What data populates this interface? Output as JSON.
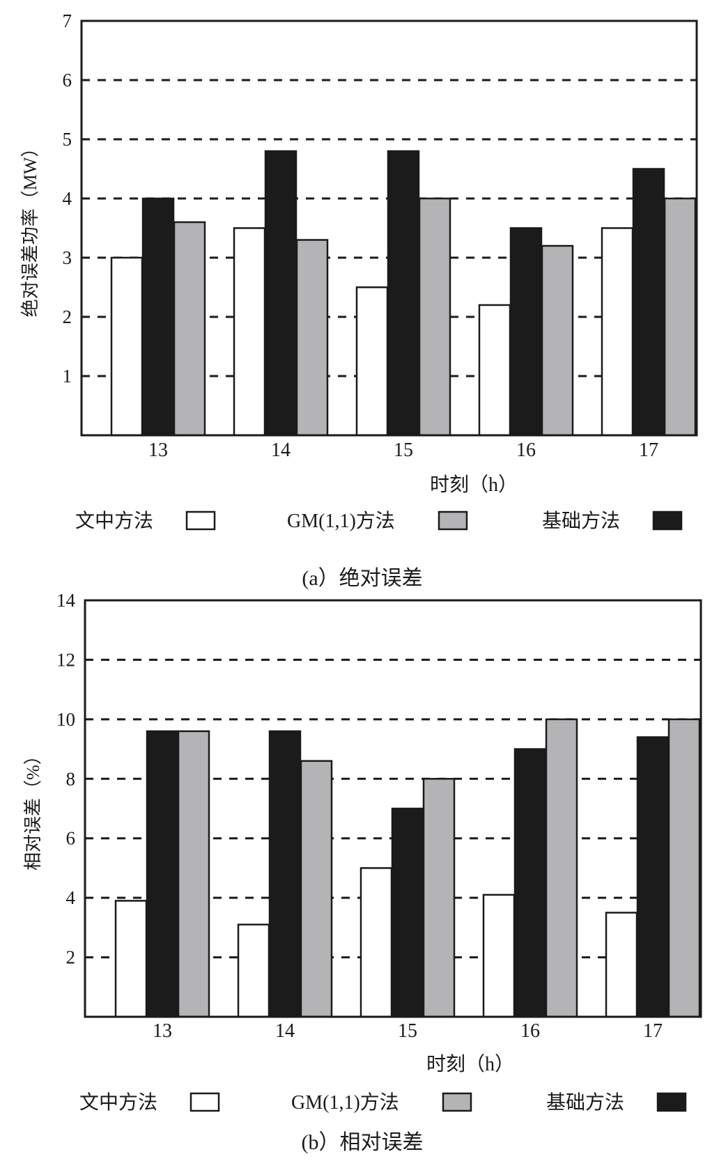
{
  "chart_data": [
    {
      "type": "bar",
      "categories": [
        "13",
        "14",
        "15",
        "16",
        "17"
      ],
      "series": [
        {
          "name": "文中方法",
          "values": [
            3.0,
            3.5,
            2.5,
            2.2,
            3.5
          ],
          "color": "#ffffff"
        },
        {
          "name": "基础方法",
          "values": [
            4.0,
            4.8,
            4.8,
            3.5,
            4.5
          ],
          "color": "#1b1b1b"
        },
        {
          "name": "GM(1,1)方法",
          "values": [
            3.6,
            3.3,
            4.0,
            3.2,
            4.0
          ],
          "color": "#b4b4b6"
        }
      ],
      "ylim": [
        0,
        7
      ],
      "yticks": [
        1,
        2,
        3,
        4,
        5,
        6,
        7
      ],
      "ylabel": "绝对误差功率（MW）",
      "xlabel": "时刻（h）",
      "grid": "dashed horizontal",
      "legend": [
        "文中方法",
        "GM(1,1)方法",
        "基础方法"
      ],
      "caption": "(a）绝对误差"
    },
    {
      "type": "bar",
      "categories": [
        "13",
        "14",
        "15",
        "16",
        "17"
      ],
      "series": [
        {
          "name": "文中方法",
          "values": [
            3.9,
            3.1,
            5.0,
            4.1,
            3.5
          ],
          "color": "#ffffff"
        },
        {
          "name": "基础方法",
          "values": [
            9.6,
            9.6,
            7.0,
            9.0,
            9.4
          ],
          "color": "#1b1b1b"
        },
        {
          "name": "GM(1,1)方法",
          "values": [
            9.6,
            8.6,
            8.0,
            10.0,
            10.0
          ],
          "color": "#b4b4b6"
        }
      ],
      "ylim": [
        0,
        14
      ],
      "yticks": [
        2,
        4,
        6,
        8,
        10,
        12,
        14
      ],
      "ylabel": "相对误差（%）",
      "xlabel": "时刻（h）",
      "grid": "dashed horizontal",
      "legend": [
        "文中方法",
        "GM(1,1)方法",
        "基础方法"
      ],
      "caption": "(b）相对误差"
    }
  ]
}
